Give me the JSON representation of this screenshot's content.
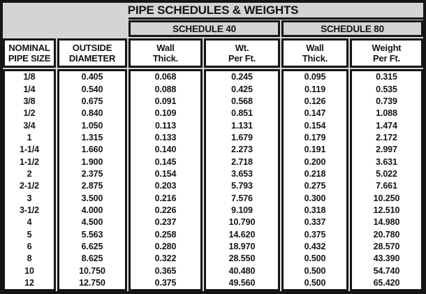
{
  "title": "PIPE SCHEDULES & WEIGHTS",
  "groups": [
    {
      "label": "SCHEDULE 40"
    },
    {
      "label": "SCHEDULE 80"
    }
  ],
  "columns": [
    {
      "key": "size",
      "line1": "NOMINAL",
      "line2": "PIPE SIZE"
    },
    {
      "key": "od",
      "line1": "OUTSIDE",
      "line2": "DIAMETER"
    },
    {
      "key": "s40_wall",
      "line1": "Wall",
      "line2": "Thick."
    },
    {
      "key": "s40_wt",
      "line1": "Wt.",
      "line2": "Per Ft."
    },
    {
      "key": "s80_wall",
      "line1": "Wall",
      "line2": "Thick."
    },
    {
      "key": "s80_wt",
      "line1": "Weight",
      "line2": "Per Ft."
    }
  ],
  "rows": [
    {
      "size": "1/8",
      "od": "0.405",
      "s40_wall": "0.068",
      "s40_wt": "0.245",
      "s80_wall": "0.095",
      "s80_wt": "0.315"
    },
    {
      "size": "1/4",
      "od": "0.540",
      "s40_wall": "0.088",
      "s40_wt": "0.425",
      "s80_wall": "0.119",
      "s80_wt": "0.535"
    },
    {
      "size": "3/8",
      "od": "0.675",
      "s40_wall": "0.091",
      "s40_wt": "0.568",
      "s80_wall": "0.126",
      "s80_wt": "0.739"
    },
    {
      "size": "1/2",
      "od": "0.840",
      "s40_wall": "0.109",
      "s40_wt": "0.851",
      "s80_wall": "0.147",
      "s80_wt": "1.088"
    },
    {
      "size": "3/4",
      "od": "1.050",
      "s40_wall": "0.113",
      "s40_wt": "1.131",
      "s80_wall": "0.154",
      "s80_wt": "1.474"
    },
    {
      "size": "1",
      "od": "1.315",
      "s40_wall": "0.133",
      "s40_wt": "1.679",
      "s80_wall": "0.179",
      "s80_wt": "2.172"
    },
    {
      "size": "1-1/4",
      "od": "1.660",
      "s40_wall": "0.140",
      "s40_wt": "2.273",
      "s80_wall": "0.191",
      "s80_wt": "2.997"
    },
    {
      "size": "1-1/2",
      "od": "1.900",
      "s40_wall": "0.145",
      "s40_wt": "2.718",
      "s80_wall": "0.200",
      "s80_wt": "3.631"
    },
    {
      "size": "2",
      "od": "2.375",
      "s40_wall": "0.154",
      "s40_wt": "3.653",
      "s80_wall": "0.218",
      "s80_wt": "5.022"
    },
    {
      "size": "2-1/2",
      "od": "2.875",
      "s40_wall": "0.203",
      "s40_wt": "5.793",
      "s80_wall": "0.275",
      "s80_wt": "7.661"
    },
    {
      "size": "3",
      "od": "3.500",
      "s40_wall": "0.216",
      "s40_wt": "7.576",
      "s80_wall": "0.300",
      "s80_wt": "10.250"
    },
    {
      "size": "3-1/2",
      "od": "4.000",
      "s40_wall": "0.226",
      "s40_wt": "9.109",
      "s80_wall": "0.318",
      "s80_wt": "12.510"
    },
    {
      "size": "4",
      "od": "4.500",
      "s40_wall": "0.237",
      "s40_wt": "10.790",
      "s80_wall": "0.337",
      "s80_wt": "14.980"
    },
    {
      "size": "5",
      "od": "5.563",
      "s40_wall": "0.258",
      "s40_wt": "14.620",
      "s80_wall": "0.375",
      "s80_wt": "20.780"
    },
    {
      "size": "6",
      "od": "6.625",
      "s40_wall": "0.280",
      "s40_wt": "18.970",
      "s80_wall": "0.432",
      "s80_wt": "28.570"
    },
    {
      "size": "8",
      "od": "8.625",
      "s40_wall": "0.322",
      "s40_wt": "28.550",
      "s80_wall": "0.500",
      "s80_wt": "43.390"
    },
    {
      "size": "10",
      "od": "10.750",
      "s40_wall": "0.365",
      "s40_wt": "40.480",
      "s80_wall": "0.500",
      "s80_wt": "54.740"
    },
    {
      "size": "12",
      "od": "12.750",
      "s40_wall": "0.375",
      "s40_wt": "49.560",
      "s80_wall": "0.500",
      "s80_wt": "65.420"
    }
  ],
  "colors": {
    "header_bg": "#d4d4d4",
    "border": "#151515",
    "cell_bg": "#ffffff",
    "text": "#141414"
  }
}
